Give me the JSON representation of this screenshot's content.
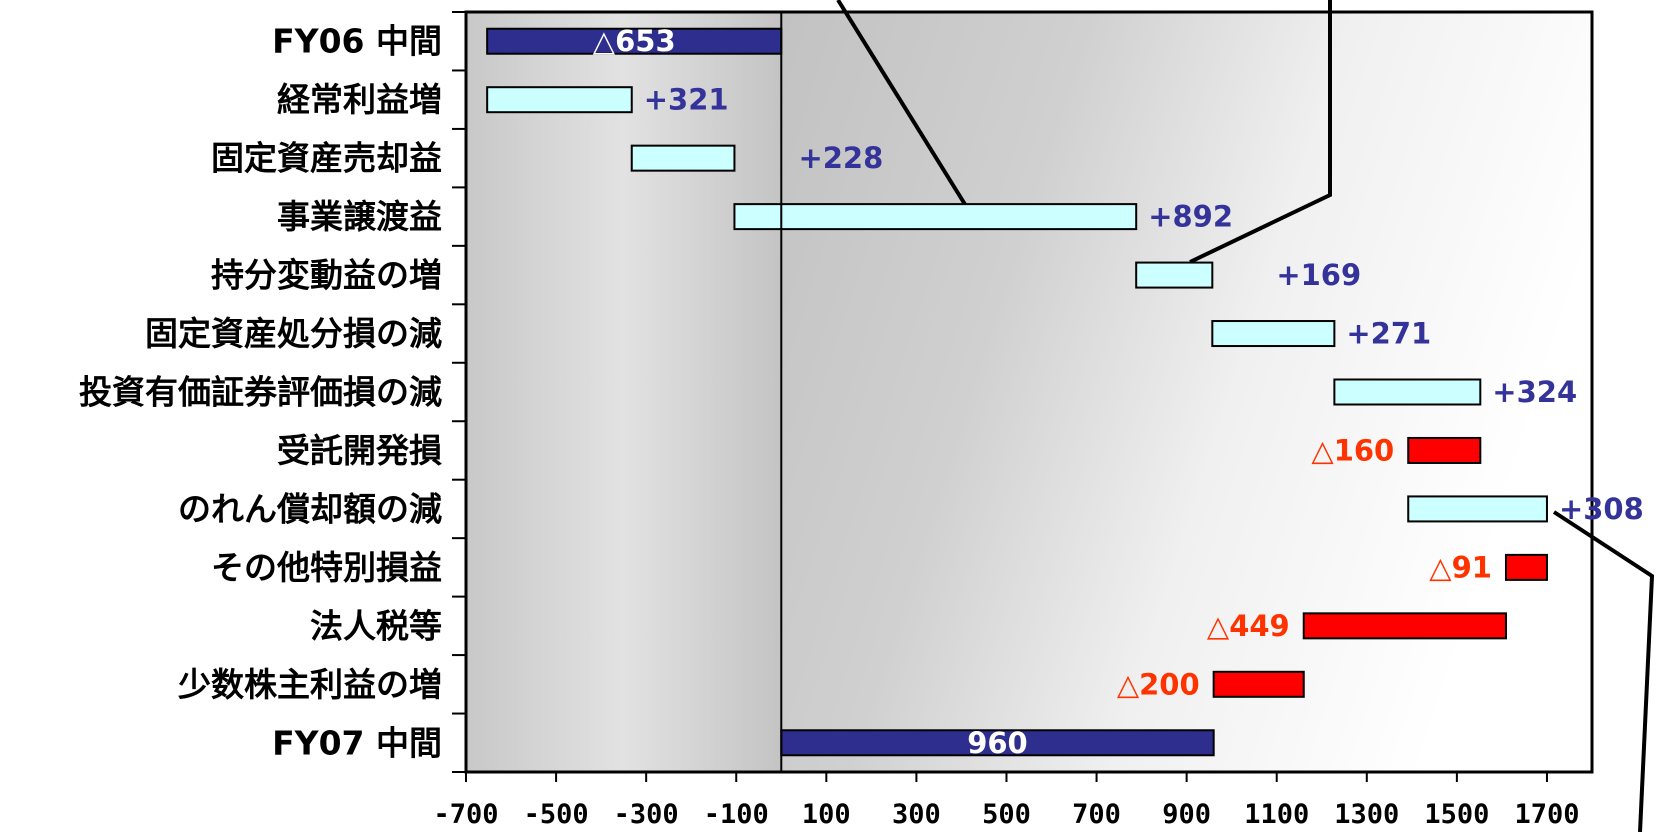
{
  "chart_data": {
    "type": "bar",
    "subtype": "waterfall-horizontal",
    "orientation": "horizontal",
    "categories": [
      "FY06 中間",
      "経常利益増",
      "固定資産売却益",
      "事業譲渡益",
      "持分変動益の増",
      "固定資産処分損の減",
      "投資有価証券評価損の減",
      "受託開発損",
      "のれん償却額の減",
      "その他特別損益",
      "法人税等",
      "少数株主利益の増",
      "FY07 中間"
    ],
    "bars": [
      {
        "start": -653,
        "end": 0,
        "kind": "total",
        "label": "△653"
      },
      {
        "start": -653,
        "end": -332,
        "kind": "increase",
        "label": "+321"
      },
      {
        "start": -332,
        "end": -104,
        "kind": "increase",
        "label": "+228"
      },
      {
        "start": -104,
        "end": 788,
        "kind": "increase",
        "label": "+892"
      },
      {
        "start": 788,
        "end": 957,
        "kind": "increase",
        "label": "+169"
      },
      {
        "start": 957,
        "end": 1228,
        "kind": "increase",
        "label": "+271"
      },
      {
        "start": 1228,
        "end": 1552,
        "kind": "increase",
        "label": "+324"
      },
      {
        "start": 1392,
        "end": 1552,
        "kind": "decrease",
        "label": "△160"
      },
      {
        "start": 1392,
        "end": 1700,
        "kind": "increase",
        "label": "+308"
      },
      {
        "start": 1609,
        "end": 1700,
        "kind": "decrease",
        "label": "△91"
      },
      {
        "start": 1160,
        "end": 1609,
        "kind": "decrease",
        "label": "△449"
      },
      {
        "start": 960,
        "end": 1160,
        "kind": "decrease",
        "label": "△200"
      },
      {
        "start": 0,
        "end": 960,
        "kind": "total",
        "label": "960"
      }
    ],
    "xlim": [
      -700,
      1800
    ],
    "xticks": [
      -700,
      -500,
      -300,
      -100,
      100,
      300,
      500,
      700,
      900,
      1100,
      1300,
      1500,
      1700
    ],
    "xtick_labels": [
      "-700",
      "-500",
      "-300",
      "-100",
      "100",
      "300",
      "500",
      "700",
      "900",
      "1100",
      "1300",
      "1500",
      "1700"
    ],
    "title": "",
    "xlabel": "",
    "ylabel": "",
    "grid": false,
    "colors": {
      "total_fill": "#2e2e8e",
      "increase_fill": "#ccffff",
      "decrease_fill": "#ff0000",
      "increase_label": "#333399",
      "decrease_label": "#ff3300",
      "total_label": "#ffffff"
    }
  }
}
